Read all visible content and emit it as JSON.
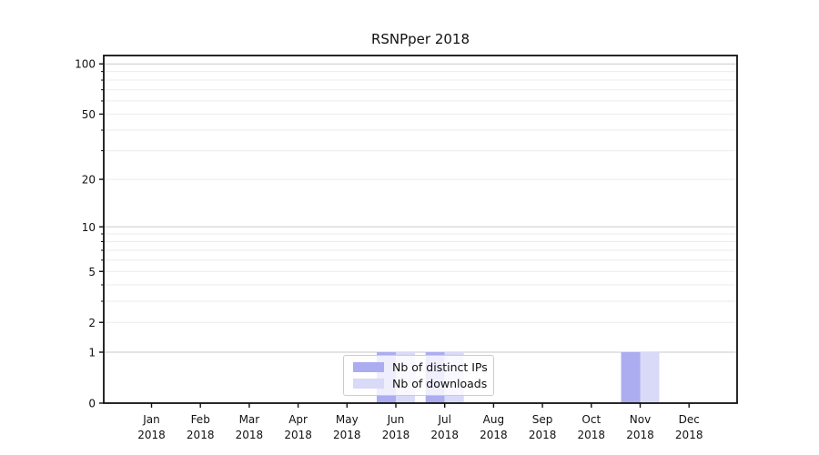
{
  "chart_data": {
    "type": "bar",
    "title": "RSNPper 2018",
    "categories": [
      "Jan",
      "Feb",
      "Mar",
      "Apr",
      "May",
      "Jun",
      "Jul",
      "Aug",
      "Sep",
      "Oct",
      "Nov",
      "Dec"
    ],
    "x_year": "2018",
    "series": [
      {
        "name": "Nb of distinct IPs",
        "color": "#acacf0",
        "values": [
          0,
          0,
          0,
          0,
          0,
          1,
          1,
          0,
          0,
          0,
          1,
          0
        ]
      },
      {
        "name": "Nb of downloads",
        "color": "#d9d9f8",
        "values": [
          0,
          0,
          0,
          0,
          0,
          1,
          1,
          0,
          0,
          0,
          1,
          0
        ]
      }
    ],
    "y_scale": "log1p",
    "ylim": [
      0,
      110
    ],
    "y_ticks": [
      0,
      1,
      2,
      5,
      10,
      20,
      50,
      100
    ],
    "y_major_grid_values": [
      1,
      10,
      100
    ],
    "y_minor_ticks": [
      3,
      4,
      6,
      7,
      8,
      9,
      30,
      40,
      60,
      70,
      80,
      90
    ],
    "grid": "horizontal",
    "legend_position": "lower center",
    "colors": {
      "grid_major": "#c9c9c9",
      "grid_minor": "#ebebeb",
      "axis": "#111111",
      "text": "#111111",
      "legend_border": "#cccccc"
    }
  }
}
